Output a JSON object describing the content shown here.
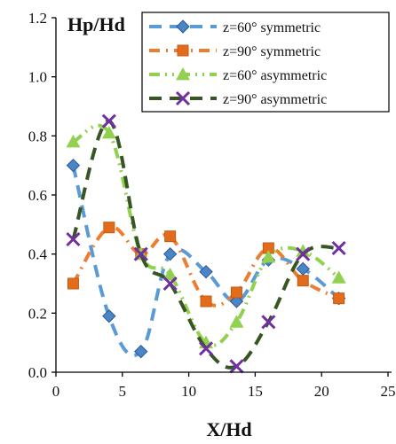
{
  "chart_data": {
    "type": "line",
    "title": "",
    "xlabel": "X/Hd",
    "ylabel": "Hp/Hd",
    "xlim": [
      0,
      25
    ],
    "ylim": [
      0,
      1.2
    ],
    "x_ticks": [
      "0",
      "5",
      "10",
      "15",
      "20",
      "25"
    ],
    "y_ticks": [
      "0.0",
      "0.2",
      "0.4",
      "0.6",
      "0.8",
      "1.0",
      "1.2"
    ],
    "grid": false,
    "legend_position": "top-right",
    "series": [
      {
        "name": "z=60° symmetric",
        "color": "#5B9BD5",
        "marker": "diamond",
        "marker_color": "#4A86C5",
        "dash": "long-dash",
        "x": [
          1.3,
          4.0,
          6.4,
          8.6,
          11.3,
          13.6,
          16.0,
          18.6,
          21.3
        ],
        "y": [
          0.7,
          0.19,
          0.07,
          0.4,
          0.34,
          0.24,
          0.38,
          0.35,
          0.25
        ]
      },
      {
        "name": "z=90° symmetric",
        "color": "#ED7D31",
        "marker": "square",
        "marker_color": "#E36C1C",
        "dash": "dash-dot",
        "x": [
          1.3,
          4.0,
          6.4,
          8.6,
          11.3,
          13.6,
          16.0,
          18.6,
          21.3
        ],
        "y": [
          0.3,
          0.49,
          0.4,
          0.46,
          0.24,
          0.27,
          0.42,
          0.31,
          0.25
        ]
      },
      {
        "name": "z=60° asymmetric",
        "color": "#92D050",
        "marker": "triangle",
        "marker_color": "#92D050",
        "dash": "dash-dot-dot",
        "x": [
          1.3,
          4.0,
          6.4,
          8.6,
          11.3,
          13.6,
          16.0,
          18.6,
          21.3
        ],
        "y": [
          0.78,
          0.81,
          0.4,
          0.33,
          0.1,
          0.17,
          0.39,
          0.41,
          0.32
        ]
      },
      {
        "name": "z=90° asymmetric",
        "color": "#375623",
        "marker": "x",
        "marker_color": "#7030A0",
        "dash": "long-dash",
        "x": [
          1.3,
          4.0,
          6.4,
          8.6,
          11.3,
          13.6,
          16.0,
          18.6,
          21.3
        ],
        "y": [
          0.45,
          0.85,
          0.4,
          0.3,
          0.08,
          0.02,
          0.17,
          0.4,
          0.42
        ]
      }
    ]
  }
}
